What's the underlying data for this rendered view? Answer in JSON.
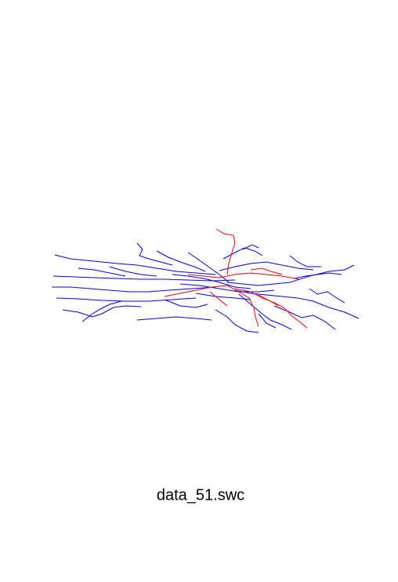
{
  "caption": "data_51.swc"
}
